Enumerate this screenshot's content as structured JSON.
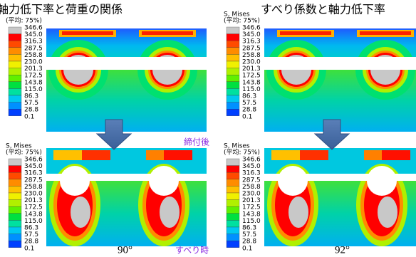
{
  "titles": {
    "left": "軸力低下率と荷重の関係",
    "right": "すべり係数と軸力低下率"
  },
  "legend": {
    "title": "S, Mises",
    "subtitle": "(平均: 75%)",
    "values": [
      "346.6",
      "345.0",
      "316.3",
      "287.5",
      "258.8",
      "230.0",
      "201.3",
      "172.5",
      "143.8",
      "115.0",
      "86.3",
      "57.5",
      "28.8",
      "0.1"
    ]
  },
  "annotations": {
    "after_tightening": "締付後",
    "at_slip": "すべり時",
    "angle_left": "90°",
    "angle_right": "92°"
  }
}
